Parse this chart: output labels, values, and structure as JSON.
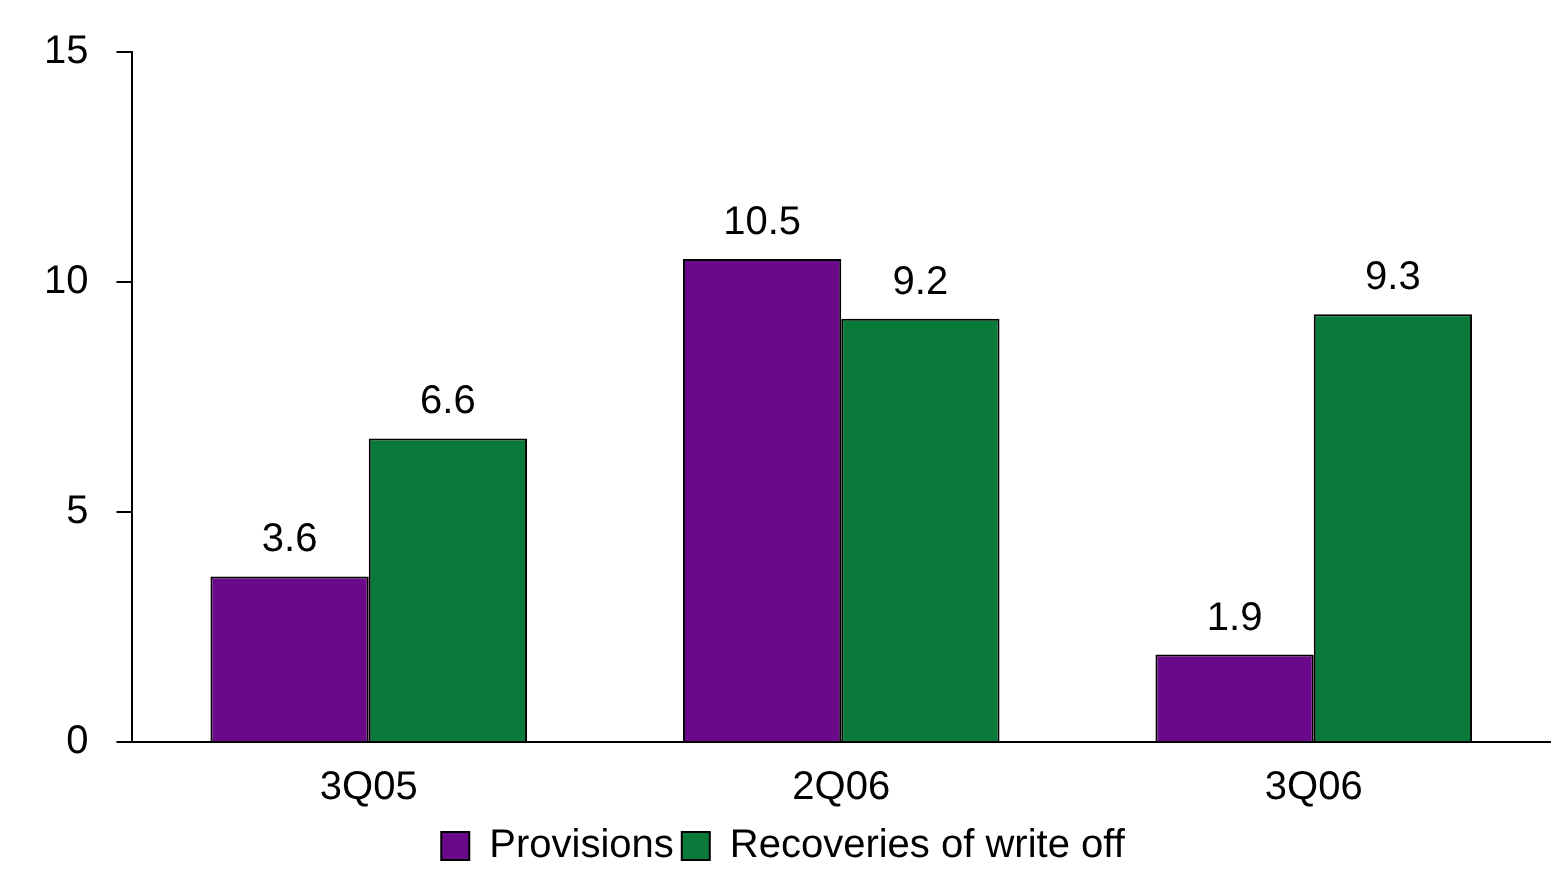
{
  "chart_data": {
    "type": "bar",
    "categories": [
      "3Q05",
      "2Q06",
      "3Q06"
    ],
    "series": [
      {
        "name": "Provisions",
        "color": "#6a0a8a",
        "values": [
          3.6,
          10.5,
          1.9
        ]
      },
      {
        "name": "Recoveries of write off",
        "color": "#0a7a3a",
        "values": [
          6.6,
          9.2,
          9.3
        ]
      }
    ],
    "ylim": [
      0,
      15
    ],
    "yticks": [
      0,
      5,
      10,
      15
    ],
    "grid": false,
    "legend": "bottom",
    "data_labels": true
  }
}
